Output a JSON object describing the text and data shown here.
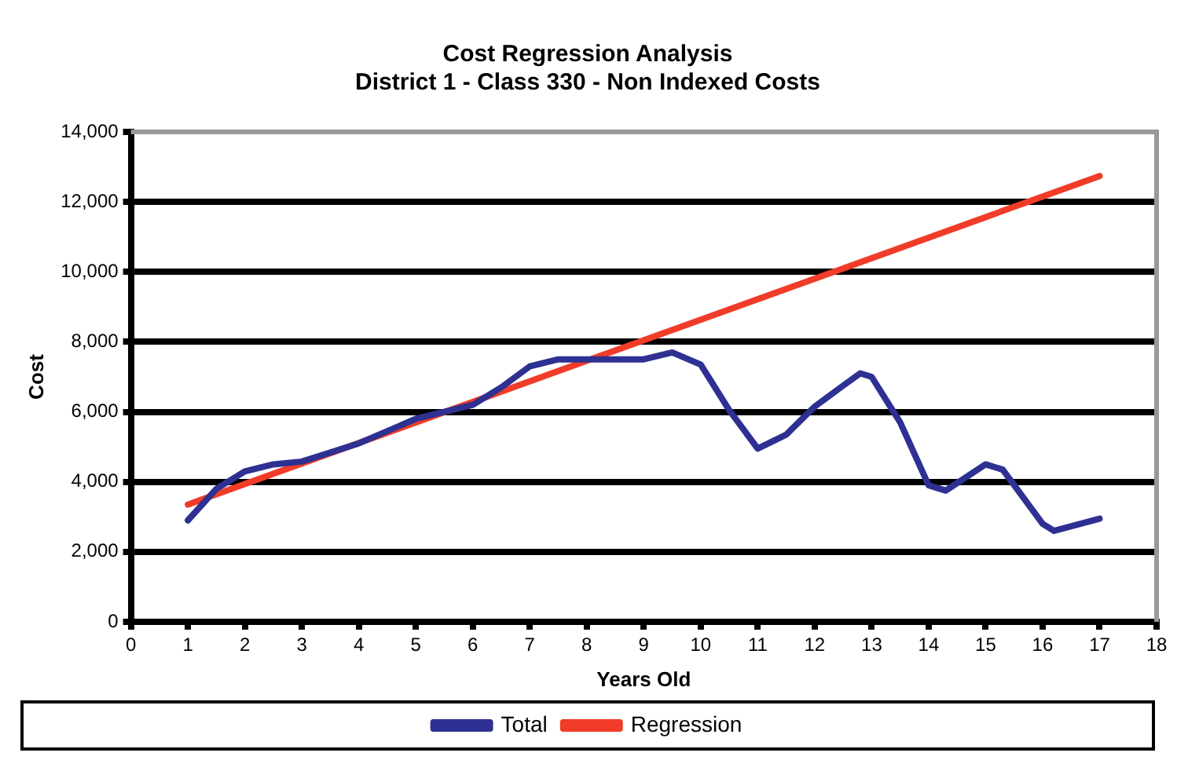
{
  "chart_data": {
    "type": "line",
    "title": "Cost Regression Analysis\nDistrict 1 - Class 330 - Non Indexed Costs",
    "xlabel": "Years Old",
    "ylabel": "Cost",
    "xlim": [
      0,
      18
    ],
    "xticks": [
      0,
      1,
      2,
      3,
      4,
      5,
      6,
      7,
      8,
      9,
      10,
      11,
      12,
      13,
      14,
      15,
      16,
      17,
      18
    ],
    "ylim": [
      0,
      14000
    ],
    "yticks": [
      0,
      {
        "value": 2000,
        "label": "2,000"
      },
      {
        "value": 4000,
        "label": "4,000"
      },
      {
        "value": 6000,
        "label": "6,000"
      },
      {
        "value": 8000,
        "label": "8,000"
      },
      {
        "value": 10000,
        "label": "10,000"
      },
      {
        "value": 12000,
        "label": "12,000"
      },
      {
        "value": 14000,
        "label": "14,000"
      }
    ],
    "grid": "y",
    "legend": "bottom",
    "marker": "none",
    "line_style": "solid",
    "series": [
      {
        "name": "Total",
        "color": "#2e3192",
        "x": [
          1,
          1.5,
          2,
          2.5,
          3,
          4,
          5,
          6,
          6.5,
          7,
          7.5,
          8,
          9,
          9.5,
          10,
          10.5,
          11,
          11.5,
          12,
          12.5,
          12.8,
          13,
          13.5,
          14,
          14.3,
          15,
          15.3,
          16,
          16.2,
          17
        ],
        "values": [
          2900,
          3800,
          4300,
          4500,
          4580,
          5100,
          5800,
          6200,
          6700,
          7300,
          7500,
          7500,
          7500,
          7700,
          7350,
          6050,
          4950,
          5350,
          6150,
          6750,
          7100,
          7000,
          5700,
          3900,
          3750,
          4500,
          4350,
          2800,
          2600,
          2950
        ]
      },
      {
        "name": "Regression",
        "color": "#f03c28",
        "x": [
          1,
          17
        ],
        "values": [
          3350,
          12740
        ]
      }
    ]
  }
}
